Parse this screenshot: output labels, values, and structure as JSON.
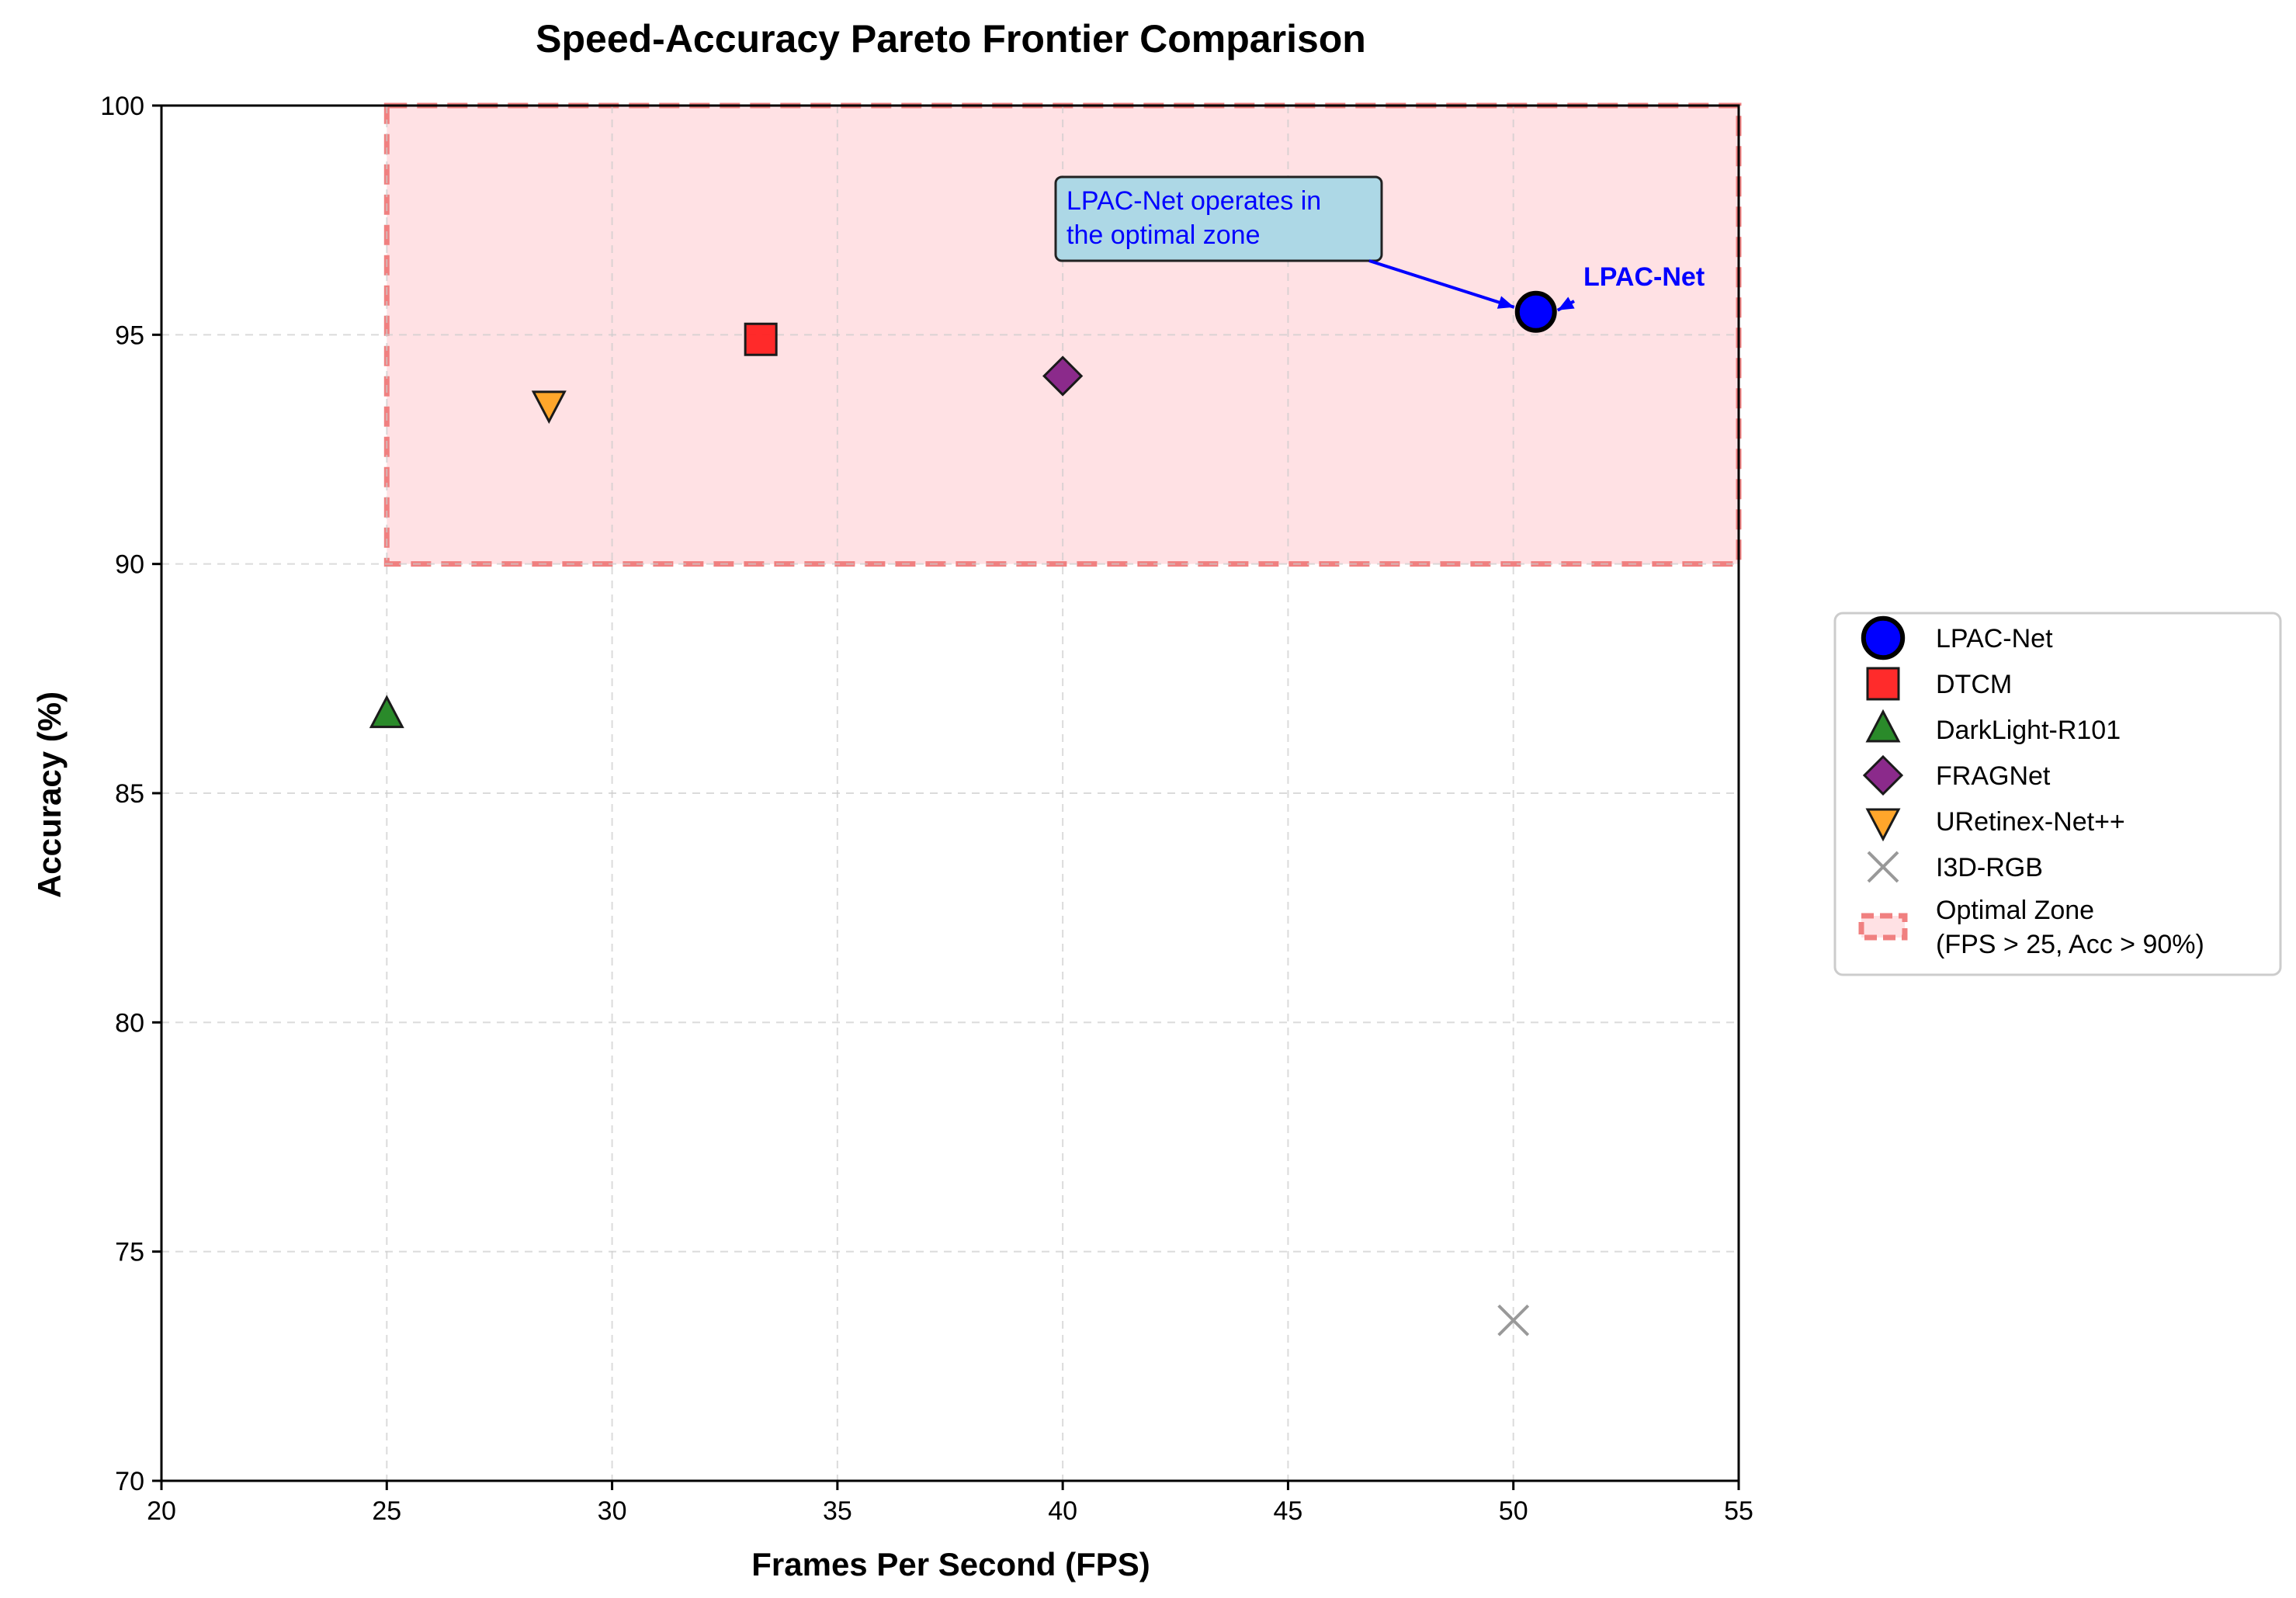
{
  "chart_data": {
    "type": "scatter",
    "title": "Speed-Accuracy Pareto Frontier Comparison",
    "xlabel": "Frames Per Second (FPS)",
    "ylabel": "Accuracy (%)",
    "xlim": [
      20,
      55
    ],
    "ylim": [
      70,
      100
    ],
    "xticks": [
      20,
      25,
      30,
      35,
      40,
      45,
      50,
      55
    ],
    "yticks": [
      70,
      75,
      80,
      85,
      90,
      95,
      100
    ],
    "grid": true,
    "legend_position": "right",
    "series": [
      {
        "name": "LPAC-Net",
        "x": 50.5,
        "y": 95.5,
        "marker": "circle",
        "color": "#0000ff"
      },
      {
        "name": "DTCM",
        "x": 33.3,
        "y": 94.9,
        "marker": "square",
        "color": "#ff2020"
      },
      {
        "name": "DarkLight-R101",
        "x": 25.0,
        "y": 86.7,
        "marker": "triangle-up",
        "color": "#2a8a2a"
      },
      {
        "name": "FRAGNet",
        "x": 40.0,
        "y": 94.1,
        "marker": "diamond",
        "color": "#8b2a8b"
      },
      {
        "name": "URetinex-Net++",
        "x": 28.6,
        "y": 93.5,
        "marker": "triangle-down",
        "color": "#ffa62b"
      },
      {
        "name": "I3D-RGB",
        "x": 50.0,
        "y": 73.5,
        "marker": "x",
        "color": "#999999"
      }
    ],
    "optimal_zone": {
      "label": "Optimal Zone\n(FPS > 25, Acc > 90%)",
      "x_min": 25,
      "x_max": 55,
      "y_min": 90,
      "y_max": 100,
      "fill": "#ffe1e4",
      "edge": "#f08080"
    },
    "annotations": {
      "box_text": "LPAC-Net operates in\nthe optimal zone",
      "box_fill": "#add8e6",
      "point_label": "LPAC-Net",
      "arrow_color": "#0000ff"
    }
  }
}
